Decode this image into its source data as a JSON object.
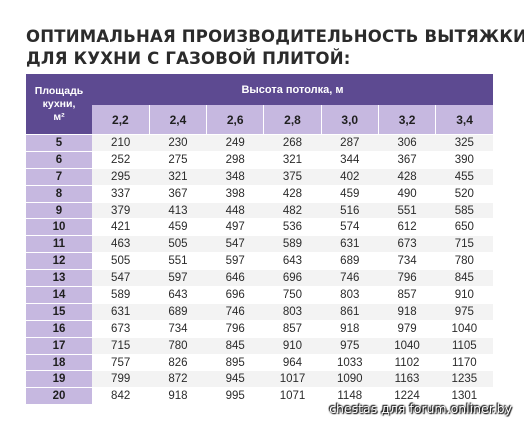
{
  "title": {
    "line1": "ОПТИМАЛЬНАЯ ПРОИЗВОДИТЕЛЬНОСТЬ ВЫТЯЖКИ",
    "line2": "ДЛЯ КУХНИ С ГАЗОВОЙ ПЛИТОЙ:"
  },
  "table": {
    "area_header": [
      "Площадь",
      "кухни,",
      "м²"
    ],
    "height_header": "Высота потолка, м",
    "heights": [
      "2,2",
      "2,4",
      "2,6",
      "2,8",
      "3,0",
      "3,2",
      "3,4"
    ],
    "rows": [
      {
        "area": "5",
        "values": [
          "210",
          "230",
          "249",
          "268",
          "287",
          "306",
          "325"
        ]
      },
      {
        "area": "6",
        "values": [
          "252",
          "275",
          "298",
          "321",
          "344",
          "367",
          "390"
        ]
      },
      {
        "area": "7",
        "values": [
          "295",
          "321",
          "348",
          "375",
          "402",
          "428",
          "455"
        ]
      },
      {
        "area": "8",
        "values": [
          "337",
          "367",
          "398",
          "428",
          "459",
          "490",
          "520"
        ]
      },
      {
        "area": "9",
        "values": [
          "379",
          "413",
          "448",
          "482",
          "516",
          "551",
          "585"
        ]
      },
      {
        "area": "10",
        "values": [
          "421",
          "459",
          "497",
          "536",
          "574",
          "612",
          "650"
        ]
      },
      {
        "area": "11",
        "values": [
          "463",
          "505",
          "547",
          "589",
          "631",
          "673",
          "715"
        ]
      },
      {
        "area": "12",
        "values": [
          "505",
          "551",
          "597",
          "643",
          "689",
          "734",
          "780"
        ]
      },
      {
        "area": "13",
        "values": [
          "547",
          "597",
          "646",
          "696",
          "746",
          "796",
          "845"
        ]
      },
      {
        "area": "14",
        "values": [
          "589",
          "643",
          "696",
          "750",
          "803",
          "857",
          "910"
        ]
      },
      {
        "area": "15",
        "values": [
          "631",
          "689",
          "746",
          "803",
          "861",
          "918",
          "975"
        ]
      },
      {
        "area": "16",
        "values": [
          "673",
          "734",
          "796",
          "857",
          "918",
          "979",
          "1040"
        ]
      },
      {
        "area": "17",
        "values": [
          "715",
          "780",
          "845",
          "910",
          "975",
          "1040",
          "1105"
        ]
      },
      {
        "area": "18",
        "values": [
          "757",
          "826",
          "895",
          "964",
          "1033",
          "1102",
          "1170"
        ]
      },
      {
        "area": "19",
        "values": [
          "799",
          "872",
          "945",
          "1017",
          "1090",
          "1163",
          "1235"
        ]
      },
      {
        "area": "20",
        "values": [
          "842",
          "918",
          "995",
          "1071",
          "1148",
          "1224",
          "1301"
        ]
      }
    ]
  },
  "watermark": "chestas для forum.onliner.by",
  "colors": {
    "header_dark": "#5d4a91",
    "header_light": "#c6b8e0",
    "row_stripe": "#f3f3f3"
  }
}
